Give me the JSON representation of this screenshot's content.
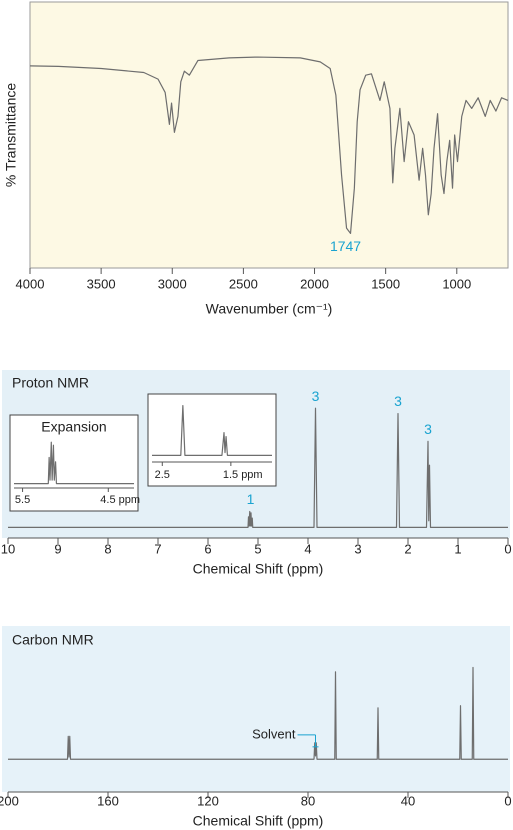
{
  "chart_data": [
    {
      "type": "line",
      "ylabel": "% Transmittance",
      "xlabel": "Wavenumber (cm⁻¹)",
      "xlim": [
        4000,
        640
      ],
      "xticks": [
        4000,
        3500,
        3000,
        2500,
        2000,
        1500,
        1000
      ],
      "ylim": [
        0,
        100
      ],
      "series": [
        {
          "color": "#6e6e6e",
          "x": [
            4000,
            3800,
            3500,
            3200,
            3100,
            3050,
            3020,
            3005,
            2985,
            2960,
            2940,
            2915,
            2880,
            2820,
            2600,
            2400,
            2100,
            1960,
            1890,
            1850,
            1810,
            1775,
            1747,
            1720,
            1700,
            1680,
            1640,
            1600,
            1540,
            1510,
            1470,
            1450,
            1435,
            1400,
            1370,
            1340,
            1300,
            1265,
            1240,
            1220,
            1200,
            1180,
            1160,
            1135,
            1110,
            1090,
            1070,
            1050,
            1030,
            1015,
            995,
            965,
            935,
            895,
            850,
            800,
            765,
            725,
            685,
            640
          ],
          "values": [
            76,
            75.8,
            75,
            73.5,
            71,
            66,
            54,
            62,
            51,
            57,
            70,
            74,
            72.5,
            78,
            79,
            79.3,
            79,
            77.5,
            75,
            65,
            35,
            15,
            13,
            30,
            55,
            67,
            72.5,
            73,
            63,
            70,
            60,
            32,
            45,
            60,
            40,
            55,
            50,
            33,
            45,
            35,
            20,
            28,
            45,
            58,
            35,
            28,
            40,
            48,
            30,
            50,
            40,
            57,
            63,
            60,
            64,
            57,
            63,
            59,
            64,
            63
          ]
        }
      ],
      "annotations": [
        {
          "label": "1747",
          "x": 1747
        }
      ]
    },
    {
      "type": "line",
      "title": "Proton NMR",
      "xlabel": "Chemical Shift (ppm)",
      "xlim": [
        10,
        0
      ],
      "xticks": [
        10,
        9,
        8,
        7,
        6,
        5,
        4,
        3,
        2,
        1,
        0
      ],
      "ylim": [
        -8,
        100
      ],
      "series": [
        {
          "color": "#6e6e6e",
          "x": [
            10,
            5.2,
            5.19,
            5.18,
            5.165,
            5.155,
            5.14,
            5.13,
            5.115,
            5.105,
            3.88,
            3.85,
            3.82,
            2.23,
            2.2,
            2.17,
            1.63,
            1.6,
            1.585,
            1.57,
            1.55,
            0
          ],
          "values": [
            0,
            0,
            8,
            1,
            12,
            1,
            11,
            1,
            7,
            0,
            0,
            90,
            0,
            0,
            86,
            0,
            0,
            65,
            5,
            47,
            0,
            0
          ]
        }
      ],
      "annotations": [
        {
          "label": "1",
          "x": 5.15
        },
        {
          "label": "3",
          "x": 3.85
        },
        {
          "label": "3",
          "x": 2.2
        },
        {
          "label": "3",
          "x": 1.6
        }
      ]
    },
    {
      "type": "line",
      "title": "Expansion",
      "xlim": [
        5.6,
        4.2
      ],
      "xticks": [
        5.5,
        {
          "value": 4.5,
          "label": "4.5 ppm"
        }
      ],
      "ylim": [
        -10,
        100
      ],
      "series": [
        {
          "color": "#6e6e6e",
          "x": [
            5.6,
            5.2,
            5.19,
            5.18,
            5.165,
            5.155,
            5.14,
            5.13,
            5.115,
            5.105,
            4.2
          ],
          "values": [
            0,
            0,
            60,
            8,
            95,
            8,
            88,
            8,
            50,
            0,
            0
          ]
        }
      ]
    },
    {
      "type": "line",
      "xlim": [
        2.65,
        0.9
      ],
      "xticks": [
        2.5,
        {
          "value": 1.5,
          "label": "1.5 ppm"
        }
      ],
      "ylim": [
        -12,
        100
      ],
      "series": [
        {
          "color": "#6e6e6e",
          "x": [
            2.65,
            2.23,
            2.2,
            2.17,
            1.63,
            1.6,
            1.585,
            1.57,
            1.55,
            0.9
          ],
          "values": [
            0,
            0,
            90,
            0,
            0,
            41,
            5,
            34,
            0,
            0
          ]
        }
      ]
    },
    {
      "type": "line",
      "title": "Carbon NMR",
      "xlabel": "Chemical Shift (ppm)",
      "xlim": [
        200,
        0
      ],
      "xticks": [
        200,
        160,
        120,
        80,
        40,
        0
      ],
      "ylim": [
        -30,
        100
      ],
      "series": [
        {
          "color": "#6e6e6e",
          "x": [
            200,
            176.2,
            175.9,
            175.6,
            175.3,
            175.0,
            77.6,
            77.3,
            77.0,
            76.7,
            76.4,
            69.3,
            69.0,
            68.7,
            52.3,
            52.0,
            51.7,
            19.3,
            19.0,
            18.7,
            14.3,
            14.0,
            13.7,
            0
          ],
          "values": [
            0,
            0,
            21,
            2,
            21,
            0,
            0,
            15,
            3,
            15,
            0,
            0,
            80,
            0,
            0,
            47,
            0,
            0,
            49,
            0,
            0,
            84,
            0,
            0
          ]
        }
      ],
      "annotations": [
        {
          "label": "Solvent",
          "x": 77
        }
      ]
    }
  ]
}
